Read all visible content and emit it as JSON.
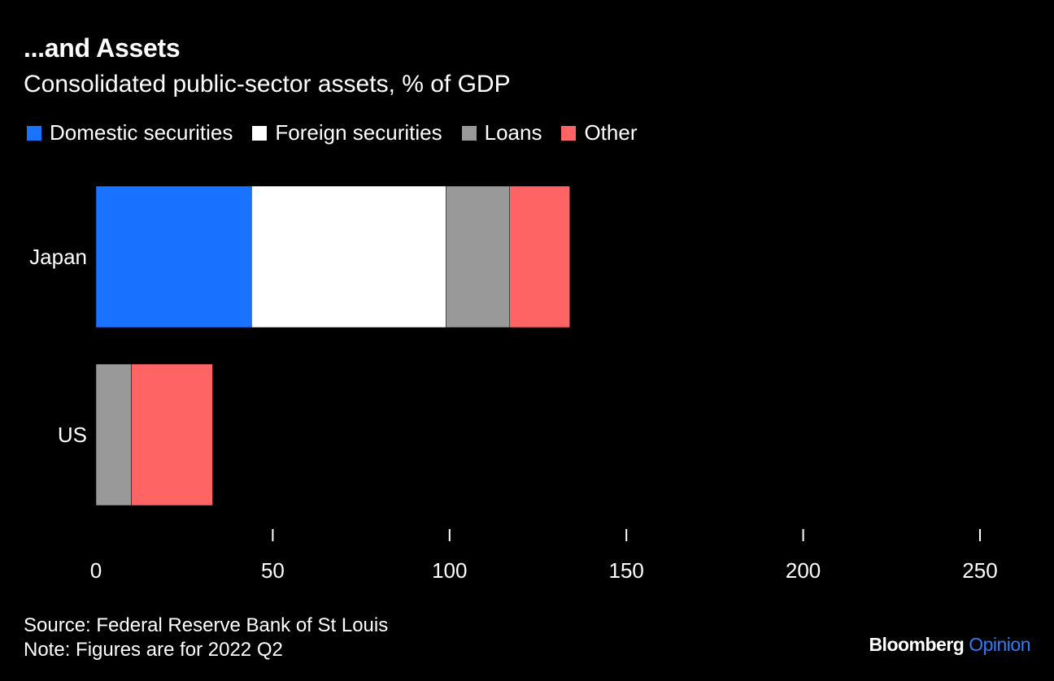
{
  "title": "...and Assets",
  "subtitle": "Consolidated public-sector assets, % of GDP",
  "source": "Source: Federal Reserve Bank of St Louis",
  "note": "Note: Figures are for 2022 Q2",
  "brand": {
    "name": "Bloomberg",
    "suffix": "Opinion",
    "accent_color": "#2f7cf6"
  },
  "chart_data": {
    "type": "bar",
    "orientation": "horizontal",
    "stacked": true,
    "categories": [
      "Japan",
      "US"
    ],
    "series": [
      {
        "name": "Domestic securities",
        "color": "#1a73ff",
        "values": [
          44,
          0
        ]
      },
      {
        "name": "Foreign securities",
        "color": "#ffffff",
        "values": [
          55,
          0
        ]
      },
      {
        "name": "Loans",
        "color": "#999999",
        "values": [
          18,
          10
        ]
      },
      {
        "name": "Other",
        "color": "#ff6464",
        "values": [
          17,
          23
        ]
      }
    ],
    "xlim": [
      0,
      250
    ],
    "xticks": [
      "0",
      "50",
      "100",
      "150",
      "200",
      "250"
    ],
    "legend": "top-left",
    "grid": false
  }
}
